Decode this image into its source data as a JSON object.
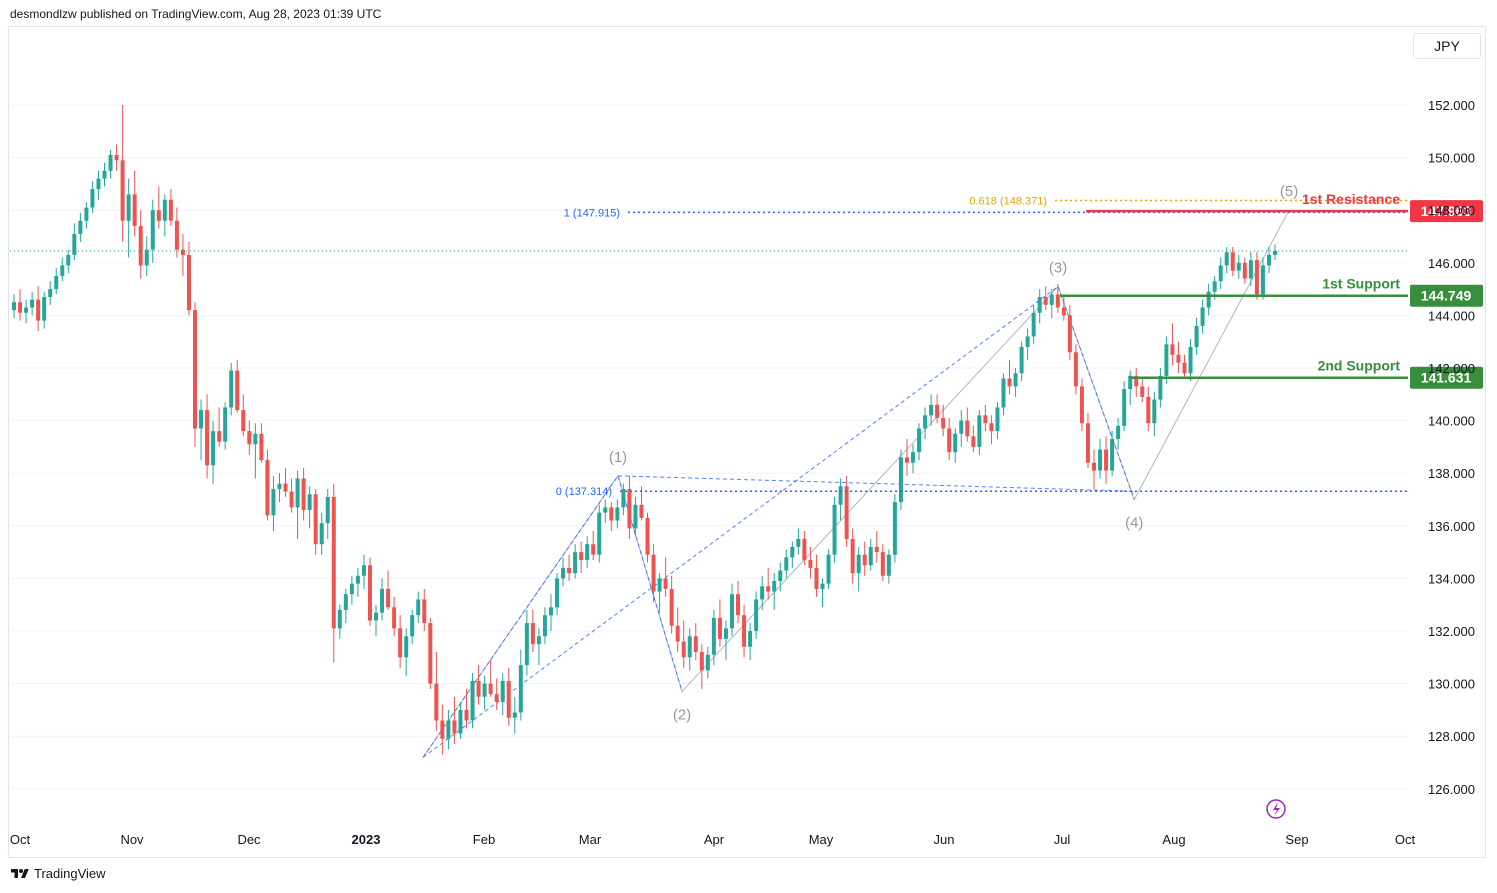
{
  "header": {
    "publisher_text": "desmondlzw published on TradingView.com, Aug 28, 2023 01:39 UTC"
  },
  "currency": "JPY",
  "footer": {
    "brand": "TradingView",
    "logo_icon": "tradingview-logo-icon"
  },
  "colors": {
    "up": "#26a69a",
    "down": "#ef5350",
    "support": "#388e3c",
    "resistance": "#f23645",
    "fib_blue": "#2962ff",
    "fib_gold": "#e0a800",
    "wave_gray": "#b2b5be",
    "grid": "#f0f3fa"
  },
  "chart_data": {
    "type": "candlestick",
    "y_axis": {
      "min": 125,
      "max": 153.5,
      "ticks": [
        "152.000",
        "150.000",
        "148.000",
        "146.000",
        "144.000",
        "142.000",
        "140.000",
        "138.000",
        "136.000",
        "134.000",
        "132.000",
        "130.000",
        "128.000",
        "126.000"
      ]
    },
    "x_axis": {
      "labels": [
        {
          "label": "Oct",
          "bold": false
        },
        {
          "label": "Nov",
          "bold": false
        },
        {
          "label": "Dec",
          "bold": false
        },
        {
          "label": "2023",
          "bold": true
        },
        {
          "label": "Feb",
          "bold": false
        },
        {
          "label": "Mar",
          "bold": false
        },
        {
          "label": "Apr",
          "bold": false
        },
        {
          "label": "May",
          "bold": false
        },
        {
          "label": "Jun",
          "bold": false
        },
        {
          "label": "Jul",
          "bold": false
        },
        {
          "label": "Aug",
          "bold": false
        },
        {
          "label": "Sep",
          "bold": false
        },
        {
          "label": "Oct",
          "bold": false
        }
      ]
    },
    "levels": [
      {
        "name": "1st Resistance",
        "value": 147.963,
        "label": "147.963",
        "kind": "resistance"
      },
      {
        "name": "1st Support",
        "value": 144.749,
        "label": "144.749",
        "kind": "support"
      },
      {
        "name": "2nd Support",
        "value": 141.631,
        "label": "141.631",
        "kind": "support"
      }
    ],
    "fib_labels": [
      {
        "text": "0.618 (148.371)",
        "value": 148.371
      },
      {
        "text": "1 (147.915)",
        "value": 147.915
      },
      {
        "text": "0 (137.314)",
        "value": 137.314
      }
    ],
    "last_price": 146.45,
    "waves": [
      {
        "label": "(1)",
        "date": "2023-03-08",
        "value": 137.9
      },
      {
        "label": "(2)",
        "date": "2023-03-24",
        "value": 129.7
      },
      {
        "label": "(3)",
        "date": "2023-06-30",
        "value": 145.1
      },
      {
        "label": "(4)",
        "date": "2023-07-21",
        "value": 137.0
      },
      {
        "label": "(5)",
        "date": "2023-08-30",
        "value": 148.0
      }
    ],
    "wave_start": {
      "date": "2023-01-16",
      "value": 127.2
    },
    "candles": [
      [
        144.2,
        144.8,
        143.9,
        144.5
      ],
      [
        144.5,
        145.0,
        143.8,
        144.1
      ],
      [
        144.1,
        144.6,
        143.7,
        144.3
      ],
      [
        144.3,
        144.9,
        144.0,
        144.6
      ],
      [
        144.6,
        145.1,
        143.4,
        143.8
      ],
      [
        143.8,
        144.9,
        143.5,
        144.7
      ],
      [
        144.7,
        145.3,
        144.4,
        145.0
      ],
      [
        145.0,
        145.8,
        144.8,
        145.5
      ],
      [
        145.5,
        146.2,
        145.3,
        145.9
      ],
      [
        145.9,
        146.5,
        145.6,
        146.3
      ],
      [
        146.3,
        147.5,
        146.1,
        147.1
      ],
      [
        147.1,
        147.9,
        146.8,
        147.6
      ],
      [
        147.6,
        148.3,
        147.3,
        148.1
      ],
      [
        148.1,
        149.1,
        147.9,
        148.8
      ],
      [
        148.8,
        149.5,
        148.4,
        149.2
      ],
      [
        149.2,
        149.8,
        148.9,
        149.5
      ],
      [
        149.5,
        150.3,
        149.2,
        150.1
      ],
      [
        150.1,
        150.5,
        149.5,
        149.9
      ],
      [
        149.9,
        152.0,
        146.8,
        147.6
      ],
      [
        147.6,
        149.2,
        146.2,
        148.6
      ],
      [
        148.6,
        149.5,
        147.0,
        147.4
      ],
      [
        147.4,
        148.0,
        145.4,
        145.9
      ],
      [
        145.9,
        147.0,
        145.5,
        146.5
      ],
      [
        146.5,
        148.4,
        146.0,
        148.0
      ],
      [
        148.0,
        148.9,
        147.3,
        147.6
      ],
      [
        147.6,
        148.6,
        147.0,
        148.4
      ],
      [
        148.4,
        148.8,
        147.4,
        147.6
      ],
      [
        147.6,
        148.1,
        146.2,
        146.5
      ],
      [
        146.5,
        147.1,
        145.5,
        146.3
      ],
      [
        146.3,
        146.8,
        144.0,
        144.2
      ],
      [
        144.2,
        144.5,
        139.0,
        139.7
      ],
      [
        139.7,
        140.8,
        138.5,
        140.4
      ],
      [
        140.4,
        141.0,
        137.8,
        138.3
      ],
      [
        138.3,
        140.0,
        137.6,
        139.6
      ],
      [
        139.6,
        140.5,
        139.0,
        139.2
      ],
      [
        139.2,
        140.7,
        138.9,
        140.5
      ],
      [
        140.5,
        142.2,
        140.2,
        141.9
      ],
      [
        141.9,
        142.3,
        140.3,
        140.4
      ],
      [
        140.4,
        141.0,
        139.4,
        139.6
      ],
      [
        139.6,
        140.0,
        138.7,
        139.1
      ],
      [
        139.1,
        139.9,
        137.8,
        139.5
      ],
      [
        139.5,
        139.9,
        138.4,
        138.5
      ],
      [
        138.5,
        138.9,
        136.2,
        136.4
      ],
      [
        136.4,
        137.9,
        135.8,
        137.4
      ],
      [
        137.4,
        138.0,
        136.9,
        137.6
      ],
      [
        137.6,
        138.2,
        137.1,
        137.3
      ],
      [
        137.3,
        137.8,
        136.5,
        136.7
      ],
      [
        136.7,
        138.1,
        135.5,
        137.8
      ],
      [
        137.8,
        138.2,
        136.2,
        136.6
      ],
      [
        136.6,
        137.5,
        135.9,
        137.2
      ],
      [
        137.2,
        137.4,
        134.9,
        135.3
      ],
      [
        135.3,
        136.5,
        134.9,
        136.1
      ],
      [
        136.1,
        137.4,
        135.5,
        137.1
      ],
      [
        137.1,
        137.6,
        130.8,
        132.1
      ],
      [
        132.1,
        133.0,
        131.7,
        132.8
      ],
      [
        132.8,
        133.6,
        132.3,
        133.4
      ],
      [
        133.4,
        134.1,
        133.0,
        133.8
      ],
      [
        133.8,
        134.4,
        133.3,
        134.1
      ],
      [
        134.1,
        134.9,
        133.6,
        134.5
      ],
      [
        134.5,
        134.8,
        132.2,
        132.4
      ],
      [
        132.4,
        133.0,
        131.8,
        132.7
      ],
      [
        132.7,
        134.0,
        132.4,
        133.6
      ],
      [
        133.6,
        134.3,
        132.8,
        132.9
      ],
      [
        132.9,
        133.3,
        131.8,
        132.1
      ],
      [
        132.1,
        132.6,
        130.6,
        131.0
      ],
      [
        131.0,
        132.1,
        130.3,
        131.8
      ],
      [
        131.8,
        132.8,
        131.5,
        132.6
      ],
      [
        132.6,
        133.5,
        132.3,
        133.2
      ],
      [
        133.2,
        133.6,
        132.0,
        132.3
      ],
      [
        132.3,
        132.5,
        129.8,
        130.0
      ],
      [
        130.0,
        131.2,
        128.2,
        128.6
      ],
      [
        128.6,
        129.2,
        127.3,
        127.9
      ],
      [
        127.9,
        129.0,
        127.5,
        128.6
      ],
      [
        128.6,
        129.5,
        127.7,
        128.1
      ],
      [
        128.1,
        129.3,
        127.9,
        129.0
      ],
      [
        129.0,
        129.8,
        128.3,
        128.6
      ],
      [
        128.6,
        130.4,
        128.3,
        130.1
      ],
      [
        130.1,
        130.7,
        129.2,
        129.5
      ],
      [
        129.5,
        130.3,
        129.0,
        130.0
      ],
      [
        130.0,
        130.9,
        129.5,
        129.6
      ],
      [
        129.6,
        130.2,
        129.0,
        129.3
      ],
      [
        129.3,
        130.4,
        128.8,
        130.1
      ],
      [
        130.1,
        130.6,
        128.4,
        128.7
      ],
      [
        128.7,
        129.5,
        128.1,
        128.9
      ],
      [
        128.9,
        131.3,
        128.6,
        130.7
      ],
      [
        130.7,
        132.8,
        130.3,
        132.3
      ],
      [
        132.3,
        132.8,
        131.2,
        131.5
      ],
      [
        131.5,
        132.1,
        130.7,
        131.8
      ],
      [
        131.8,
        132.9,
        131.5,
        132.6
      ],
      [
        132.6,
        133.4,
        132.0,
        132.9
      ],
      [
        132.9,
        134.2,
        132.6,
        134.0
      ],
      [
        134.0,
        134.8,
        133.7,
        134.4
      ],
      [
        134.4,
        134.9,
        133.9,
        134.2
      ],
      [
        134.2,
        135.3,
        134.0,
        135.0
      ],
      [
        135.0,
        135.4,
        134.2,
        134.7
      ],
      [
        134.7,
        135.6,
        134.4,
        135.3
      ],
      [
        135.3,
        135.8,
        134.7,
        134.9
      ],
      [
        134.9,
        136.8,
        134.6,
        136.5
      ],
      [
        136.5,
        137.0,
        136.1,
        136.7
      ],
      [
        136.7,
        136.9,
        135.8,
        136.2
      ],
      [
        136.2,
        137.0,
        135.9,
        136.7
      ],
      [
        136.7,
        137.6,
        136.4,
        137.4
      ],
      [
        137.4,
        137.9,
        135.5,
        135.9
      ],
      [
        135.9,
        137.1,
        135.6,
        136.8
      ],
      [
        136.8,
        137.5,
        136.2,
        136.3
      ],
      [
        136.3,
        136.5,
        134.6,
        134.9
      ],
      [
        134.9,
        135.3,
        133.1,
        133.5
      ],
      [
        133.5,
        134.2,
        132.7,
        134.0
      ],
      [
        134.0,
        134.8,
        133.3,
        133.6
      ],
      [
        133.6,
        134.1,
        131.9,
        132.2
      ],
      [
        132.2,
        132.9,
        131.2,
        131.6
      ],
      [
        131.6,
        132.4,
        130.6,
        131.0
      ],
      [
        131.0,
        132.1,
        130.5,
        131.8
      ],
      [
        131.8,
        132.3,
        130.9,
        131.2
      ],
      [
        131.2,
        131.5,
        129.8,
        130.5
      ],
      [
        130.5,
        131.4,
        130.2,
        131.1
      ],
      [
        131.1,
        132.8,
        130.7,
        132.5
      ],
      [
        132.5,
        133.2,
        131.4,
        131.7
      ],
      [
        131.7,
        132.4,
        130.9,
        132.1
      ],
      [
        132.1,
        133.8,
        131.8,
        133.4
      ],
      [
        133.4,
        133.9,
        132.3,
        132.6
      ],
      [
        132.6,
        133.0,
        131.0,
        131.4
      ],
      [
        131.4,
        132.3,
        130.9,
        132.0
      ],
      [
        132.0,
        133.5,
        131.7,
        133.2
      ],
      [
        133.2,
        134.1,
        132.8,
        133.7
      ],
      [
        133.7,
        134.4,
        133.2,
        133.5
      ],
      [
        133.5,
        134.2,
        132.8,
        133.9
      ],
      [
        133.9,
        134.6,
        133.5,
        134.3
      ],
      [
        134.3,
        135.1,
        134.0,
        134.8
      ],
      [
        134.8,
        135.4,
        134.4,
        135.2
      ],
      [
        135.2,
        135.9,
        134.9,
        135.5
      ],
      [
        135.5,
        135.8,
        134.5,
        134.7
      ],
      [
        134.7,
        135.2,
        134.0,
        134.4
      ],
      [
        134.4,
        134.9,
        133.3,
        133.6
      ],
      [
        133.6,
        134.0,
        132.9,
        133.8
      ],
      [
        133.8,
        135.1,
        133.6,
        134.9
      ],
      [
        134.9,
        137.1,
        134.6,
        136.8
      ],
      [
        136.8,
        137.8,
        136.2,
        137.5
      ],
      [
        137.5,
        137.9,
        135.2,
        135.5
      ],
      [
        135.5,
        135.9,
        133.8,
        134.2
      ],
      [
        134.2,
        135.2,
        133.5,
        134.9
      ],
      [
        134.9,
        135.4,
        134.1,
        134.5
      ],
      [
        134.5,
        135.5,
        134.3,
        135.2
      ],
      [
        135.2,
        135.8,
        134.6,
        135.0
      ],
      [
        135.0,
        135.3,
        133.9,
        134.1
      ],
      [
        134.1,
        135.1,
        133.8,
        134.9
      ],
      [
        134.9,
        137.2,
        134.6,
        136.9
      ],
      [
        136.9,
        138.9,
        136.6,
        138.6
      ],
      [
        138.6,
        139.3,
        137.9,
        138.4
      ],
      [
        138.4,
        139.1,
        138.0,
        138.8
      ],
      [
        138.8,
        139.9,
        138.5,
        139.7
      ],
      [
        139.7,
        140.5,
        139.3,
        140.2
      ],
      [
        140.2,
        141.0,
        139.8,
        140.6
      ],
      [
        140.6,
        141.0,
        139.9,
        140.1
      ],
      [
        140.1,
        140.6,
        139.4,
        139.7
      ],
      [
        139.7,
        140.1,
        138.5,
        138.8
      ],
      [
        138.8,
        139.7,
        138.4,
        139.5
      ],
      [
        139.5,
        140.4,
        139.0,
        140.0
      ],
      [
        140.0,
        140.5,
        139.2,
        139.4
      ],
      [
        139.4,
        139.8,
        138.8,
        139.0
      ],
      [
        139.0,
        140.4,
        138.7,
        140.2
      ],
      [
        140.2,
        140.6,
        139.6,
        139.9
      ],
      [
        139.9,
        140.2,
        139.1,
        139.6
      ],
      [
        139.6,
        140.7,
        139.3,
        140.5
      ],
      [
        140.5,
        141.8,
        140.2,
        141.6
      ],
      [
        141.6,
        142.3,
        141.0,
        141.3
      ],
      [
        141.3,
        142.0,
        140.9,
        141.8
      ],
      [
        141.8,
        143.0,
        141.5,
        142.8
      ],
      [
        142.8,
        143.5,
        142.3,
        143.2
      ],
      [
        143.2,
        144.4,
        142.9,
        144.1
      ],
      [
        144.1,
        145.0,
        143.7,
        144.7
      ],
      [
        144.7,
        145.1,
        144.2,
        144.4
      ],
      [
        144.4,
        145.0,
        143.9,
        144.8
      ],
      [
        144.8,
        145.2,
        144.1,
        144.3
      ],
      [
        144.3,
        144.7,
        143.8,
        144.0
      ],
      [
        144.0,
        144.4,
        142.3,
        142.6
      ],
      [
        142.6,
        142.9,
        141.0,
        141.3
      ],
      [
        141.3,
        141.6,
        139.6,
        139.9
      ],
      [
        139.9,
        140.3,
        138.2,
        138.4
      ],
      [
        138.4,
        138.9,
        137.4,
        138.1
      ],
      [
        138.1,
        139.3,
        137.8,
        138.9
      ],
      [
        138.9,
        139.4,
        137.6,
        138.1
      ],
      [
        138.1,
        139.6,
        137.9,
        139.3
      ],
      [
        139.3,
        140.1,
        138.9,
        139.8
      ],
      [
        139.8,
        141.5,
        139.6,
        141.2
      ],
      [
        141.2,
        141.9,
        140.6,
        141.7
      ],
      [
        141.7,
        142.0,
        140.9,
        141.3
      ],
      [
        141.3,
        141.6,
        140.7,
        140.9
      ],
      [
        140.9,
        141.3,
        139.6,
        139.9
      ],
      [
        139.9,
        141.1,
        139.4,
        140.8
      ],
      [
        140.8,
        142.0,
        140.5,
        141.7
      ],
      [
        141.7,
        143.2,
        141.4,
        142.9
      ],
      [
        142.9,
        143.7,
        142.1,
        142.5
      ],
      [
        142.5,
        143.0,
        141.8,
        142.2
      ],
      [
        142.2,
        142.5,
        141.6,
        141.8
      ],
      [
        141.8,
        143.1,
        141.5,
        142.8
      ],
      [
        142.8,
        143.9,
        142.5,
        143.6
      ],
      [
        143.6,
        144.6,
        143.3,
        144.3
      ],
      [
        144.3,
        145.2,
        144.0,
        144.9
      ],
      [
        144.9,
        145.5,
        144.6,
        145.3
      ],
      [
        145.3,
        146.2,
        145.0,
        145.9
      ],
      [
        145.9,
        146.6,
        145.6,
        146.4
      ],
      [
        146.4,
        146.6,
        145.5,
        145.7
      ],
      [
        145.7,
        146.3,
        145.4,
        146.0
      ],
      [
        146.0,
        146.2,
        145.2,
        145.4
      ],
      [
        145.4,
        146.4,
        145.1,
        146.1
      ],
      [
        146.1,
        146.4,
        144.6,
        144.8
      ],
      [
        144.8,
        146.2,
        144.6,
        145.9
      ],
      [
        145.9,
        146.6,
        145.6,
        146.3
      ],
      [
        146.3,
        146.7,
        146.1,
        146.45
      ]
    ]
  }
}
